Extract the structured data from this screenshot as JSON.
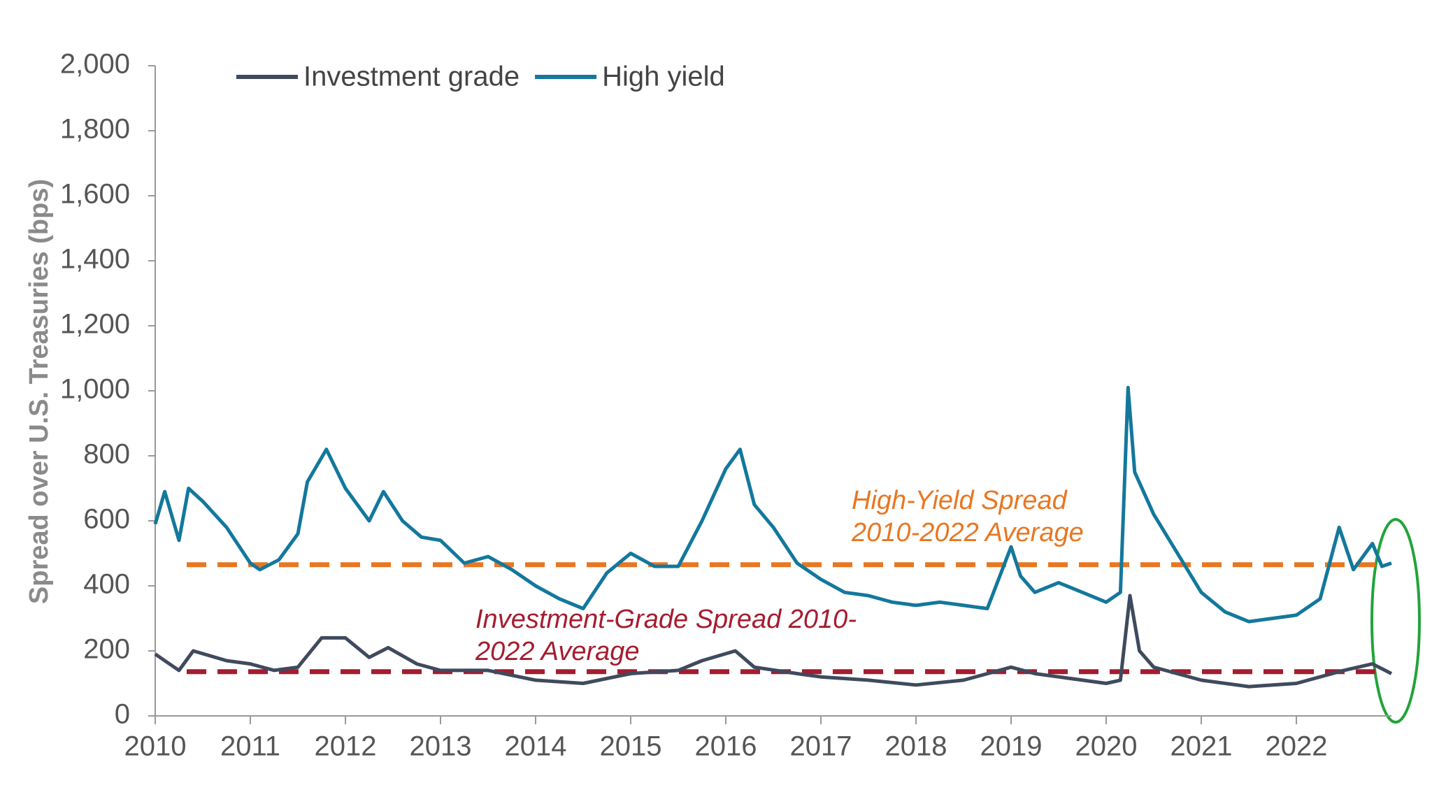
{
  "chart_data": {
    "type": "line",
    "y_label": "Spread over U.S. Treasuries (bps)",
    "xlim": [
      2010,
      2023
    ],
    "xticks": [
      2010,
      2011,
      2012,
      2013,
      2014,
      2015,
      2016,
      2017,
      2018,
      2019,
      2020,
      2021,
      2022
    ],
    "ylim": [
      0,
      2000
    ],
    "yticks": [
      0,
      200,
      400,
      600,
      800,
      {
        "value": 1000,
        "label": "1,000"
      },
      {
        "value": 1200,
        "label": "1,200"
      },
      {
        "value": 1400,
        "label": "1,400"
      },
      {
        "value": 1600,
        "label": "1,600"
      },
      {
        "value": 1800,
        "label": "1,800"
      },
      {
        "value": 2000,
        "label": "2,000"
      }
    ],
    "grid": false,
    "legend": "top",
    "series": [
      {
        "name": "Investment grade",
        "color": "#3f4a5e",
        "x": [
          2010.0,
          2010.1,
          2010.25,
          2010.4,
          2010.75,
          2011.0,
          2011.25,
          2011.5,
          2011.75,
          2012.0,
          2012.25,
          2012.45,
          2012.75,
          2013.0,
          2013.5,
          2014.0,
          2014.5,
          2015.0,
          2015.5,
          2015.75,
          2016.1,
          2016.3,
          2016.75,
          2017.0,
          2017.5,
          2018.0,
          2018.5,
          2019.0,
          2019.25,
          2019.5,
          2020.0,
          2020.15,
          2020.25,
          2020.35,
          2020.5,
          2021.0,
          2021.5,
          2022.0,
          2022.5,
          2022.8,
          2023.0
        ],
        "values": [
          190,
          170,
          140,
          200,
          170,
          160,
          140,
          150,
          240,
          240,
          180,
          210,
          160,
          140,
          140,
          110,
          100,
          130,
          140,
          170,
          200,
          150,
          130,
          120,
          110,
          95,
          110,
          150,
          130,
          120,
          100,
          110,
          370,
          200,
          150,
          110,
          90,
          100,
          140,
          160,
          130
        ]
      },
      {
        "name": "High yield",
        "color": "#13789c",
        "x": [
          2010.0,
          2010.1,
          2010.25,
          2010.35,
          2010.5,
          2010.75,
          2011.0,
          2011.1,
          2011.3,
          2011.5,
          2011.6,
          2011.8,
          2012.0,
          2012.25,
          2012.4,
          2012.6,
          2012.8,
          2013.0,
          2013.25,
          2013.5,
          2013.75,
          2014.0,
          2014.25,
          2014.5,
          2014.75,
          2015.0,
          2015.25,
          2015.5,
          2015.75,
          2016.0,
          2016.15,
          2016.3,
          2016.5,
          2016.75,
          2017.0,
          2017.25,
          2017.5,
          2017.75,
          2018.0,
          2018.25,
          2018.5,
          2018.75,
          2019.0,
          2019.1,
          2019.25,
          2019.5,
          2019.75,
          2020.0,
          2020.15,
          2020.23,
          2020.3,
          2020.5,
          2020.75,
          2021.0,
          2021.25,
          2021.5,
          2021.75,
          2022.0,
          2022.25,
          2022.45,
          2022.6,
          2022.8,
          2022.9,
          2023.0
        ],
        "values": [
          590,
          690,
          540,
          700,
          660,
          580,
          470,
          450,
          480,
          560,
          720,
          820,
          700,
          600,
          690,
          600,
          550,
          540,
          470,
          490,
          450,
          400,
          360,
          330,
          440,
          500,
          460,
          460,
          600,
          760,
          820,
          650,
          580,
          470,
          420,
          380,
          370,
          350,
          340,
          350,
          340,
          330,
          520,
          430,
          380,
          410,
          380,
          350,
          380,
          1010,
          750,
          620,
          500,
          380,
          320,
          290,
          300,
          310,
          360,
          580,
          450,
          530,
          460,
          470
        ]
      }
    ],
    "reference_lines": [
      {
        "value": 465,
        "color": "#e87722",
        "label_lines": [
          "High-Yield Spread",
          "2010-2022  Average"
        ]
      },
      {
        "value": 136,
        "color": "#a51c30",
        "label_lines": [
          "Investment-Grade Spread  2010-",
          "2022  Average"
        ]
      }
    ]
  }
}
